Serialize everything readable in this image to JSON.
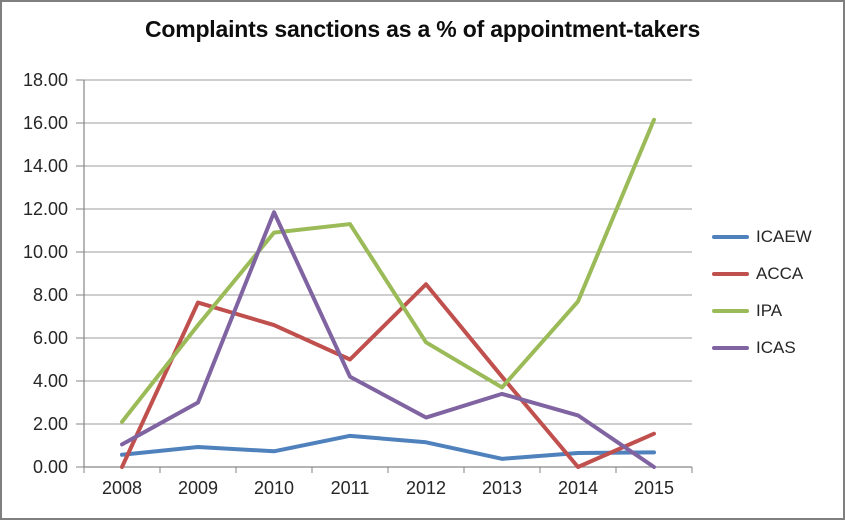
{
  "colors": {
    "background": "#FFFFFF",
    "border": "#7F7F7F",
    "gridline": "#9C9C9C",
    "axis": "#868686",
    "tick_text": "#262626",
    "title_text": "#0D0D0D"
  },
  "chart_data": {
    "type": "line",
    "title": "Complaints sanctions as a % of appointment-takers",
    "categories": [
      "2008",
      "2009",
      "2010",
      "2011",
      "2012",
      "2013",
      "2014",
      "2015"
    ],
    "series": [
      {
        "name": "ICAEW",
        "color": "#4F81BD",
        "values": [
          0.57,
          0.93,
          0.73,
          1.45,
          1.15,
          0.38,
          0.65,
          0.68
        ]
      },
      {
        "name": "ACCA",
        "color": "#C0504D",
        "values": [
          0.0,
          7.65,
          6.6,
          5.0,
          8.5,
          4.2,
          0.0,
          1.55
        ]
      },
      {
        "name": "IPA",
        "color": "#9BBB59",
        "values": [
          2.1,
          6.6,
          10.9,
          11.3,
          5.8,
          3.7,
          7.7,
          16.15
        ]
      },
      {
        "name": "ICAS",
        "color": "#8064A2",
        "values": [
          1.05,
          3.0,
          11.85,
          4.2,
          2.3,
          3.4,
          2.4,
          0.0
        ]
      }
    ],
    "xlabel": "",
    "ylabel": "",
    "ylim": [
      0,
      18
    ],
    "ytick_step": 2,
    "ytick_labels": [
      "0.00",
      "2.00",
      "4.00",
      "6.00",
      "8.00",
      "10.00",
      "12.00",
      "14.00",
      "16.00",
      "18.00"
    ],
    "grid": true,
    "legend_position": "right",
    "legend_labels": [
      "ICAEW",
      "ACCA",
      "IPA",
      "ICAS"
    ]
  }
}
